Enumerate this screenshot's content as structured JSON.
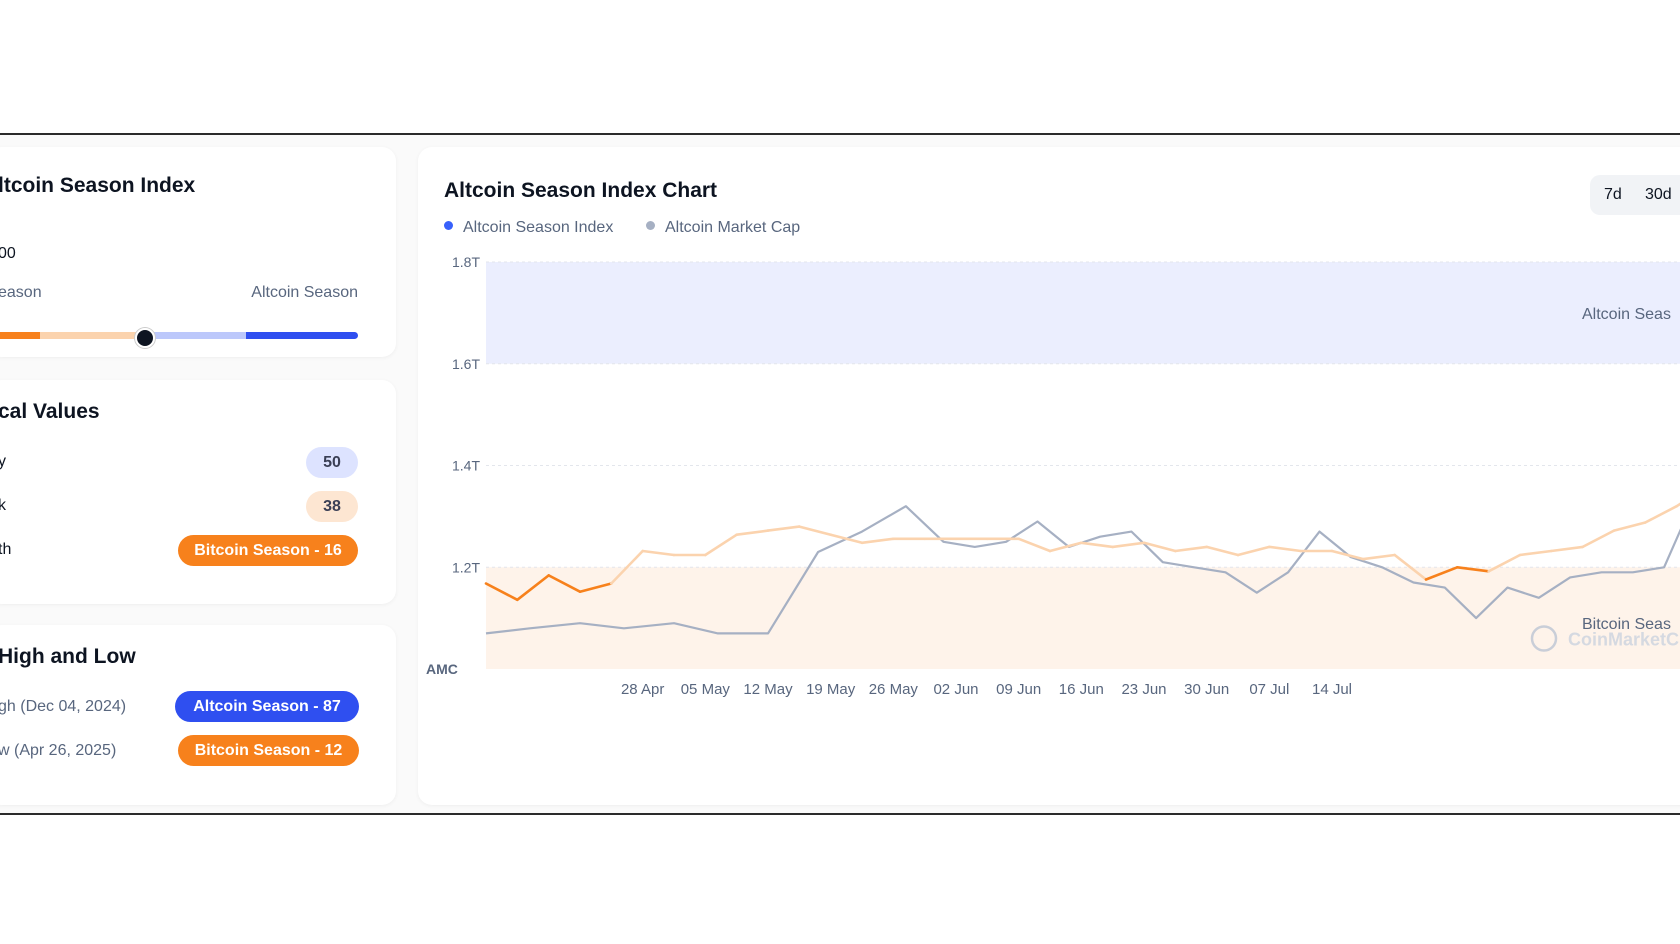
{
  "index_card": {
    "title": "ltcoin Season Index",
    "score": "00",
    "left_label": "eason",
    "right_label": "Altcoin Season"
  },
  "historical": {
    "title": "cal Values",
    "rows": [
      {
        "label": "y",
        "value": "50"
      },
      {
        "label": "k",
        "value": "38"
      },
      {
        "label": "th",
        "value": "Bitcoin Season - 16"
      }
    ]
  },
  "high_low": {
    "title": "High and Low",
    "rows": [
      {
        "label": "gh (Dec 04, 2024)",
        "value": "Altcoin Season - 87"
      },
      {
        "label": "w (Apr 26, 2025)",
        "value": "Bitcoin Season - 12"
      }
    ]
  },
  "chart": {
    "title": "Altcoin Season Index Chart",
    "legend": [
      {
        "label": "Altcoin Season Index",
        "color": "#3861fb"
      },
      {
        "label": "Altcoin Market Cap",
        "color": "#a6b0c3"
      }
    ],
    "ranges": [
      "7d",
      "30d"
    ],
    "band_labels": {
      "top": "Altcoin Seas",
      "bottom": "Bitcoin Seas"
    },
    "watermark": "CoinMarketC",
    "amc_label": "AMC"
  },
  "colors": {
    "bitcoin": "#f7811c",
    "bitcoin_light": "#fbd3ae",
    "altcoin": "#2f4ff0",
    "altcoin_light": "#bcc8fb",
    "market_cap": "#a6b0c3",
    "band_top": "#ebeefe",
    "band_bottom": "#fef3ea"
  },
  "chart_data": {
    "type": "line",
    "y_axis": {
      "ticks": [
        "1.8T",
        "1.6T",
        "1.4T",
        "1.2T"
      ],
      "ylim": [
        1.0,
        1.8
      ]
    },
    "x_ticks": [
      "28 Apr",
      "05 May",
      "12 May",
      "19 May",
      "26 May",
      "02 Jun",
      "09 Jun",
      "16 Jun",
      "23 Jun",
      "30 Jun",
      "07 Jul",
      "14 Jul"
    ],
    "xlim": [
      -2.5,
      17
    ],
    "series": [
      {
        "name": "Altcoin Market Cap",
        "x": [
          -2.5,
          -1.8,
          -1.0,
          -0.3,
          0.5,
          1.2,
          2.0,
          2.8,
          3.5,
          4.2,
          4.8,
          5.3,
          5.8,
          6.3,
          6.8,
          7.3,
          7.8,
          8.3,
          8.8,
          9.3,
          9.8,
          10.3,
          10.8,
          11.3,
          11.8,
          12.3,
          12.8,
          13.3,
          13.8,
          14.3,
          14.8,
          15.3,
          15.8,
          16.3,
          16.8,
          17.0
        ],
        "values": [
          1.07,
          1.08,
          1.09,
          1.08,
          1.09,
          1.07,
          1.07,
          1.23,
          1.27,
          1.32,
          1.25,
          1.24,
          1.25,
          1.29,
          1.24,
          1.26,
          1.27,
          1.21,
          1.2,
          1.19,
          1.15,
          1.19,
          1.27,
          1.22,
          1.2,
          1.17,
          1.16,
          1.1,
          1.16,
          1.14,
          1.18,
          1.19,
          1.19,
          1.2,
          1.34,
          1.44
        ]
      },
      {
        "name": "Altcoin Season Index",
        "x": [
          -2.5,
          -2.0,
          -1.5,
          -1.0,
          -0.5,
          0.0,
          0.5,
          1.0,
          1.5,
          2.0,
          2.5,
          3.0,
          3.5,
          4.0,
          4.5,
          5.0,
          5.5,
          6.0,
          6.5,
          7.0,
          7.5,
          8.0,
          8.5,
          9.0,
          9.5,
          10.0,
          10.5,
          11.0,
          11.5,
          12.0,
          12.5,
          13.0,
          13.5,
          14.0,
          14.5,
          15.0,
          15.5,
          16.0,
          16.5,
          17.0
        ],
        "values": [
          21,
          17,
          23,
          19,
          21,
          29,
          28,
          28,
          33,
          34,
          35,
          33,
          31,
          32,
          32,
          32,
          32,
          32,
          29,
          31,
          30,
          31,
          29,
          30,
          28,
          30,
          29,
          29,
          27,
          28,
          22,
          25,
          24,
          28,
          29,
          30,
          34,
          36,
          40,
          45
        ]
      }
    ],
    "bands": [
      {
        "label": "Altcoin Season",
        "from": 1.6,
        "to": 1.8
      },
      {
        "label": "Bitcoin Season",
        "from": 1.0,
        "to": 1.2
      }
    ],
    "grid": true,
    "legend_position": "top-left"
  }
}
